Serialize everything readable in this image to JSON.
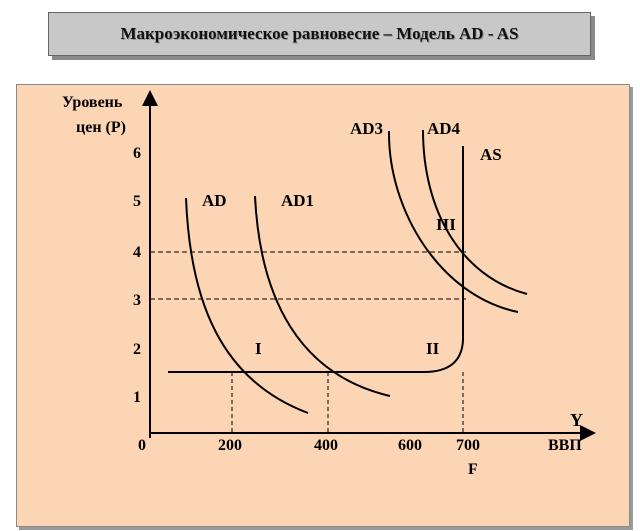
{
  "title": "Макроэкономическое равновесие – Модель AD - AS",
  "chart_data": {
    "type": "line",
    "y_axis_label_line1": "Уровень",
    "y_axis_label_line2": "цен (Р)",
    "x_axis_label_top": "Y",
    "x_axis_label_bottom": "ВВП",
    "origin_label": "0",
    "full_employment_label": "F",
    "y_ticks": [
      "1",
      "2",
      "3",
      "4",
      "5",
      "6"
    ],
    "x_ticks": [
      "200",
      "400",
      "600",
      "700"
    ],
    "series": [
      {
        "name": "AD"
      },
      {
        "name": "AD1"
      },
      {
        "name": "AD3"
      },
      {
        "name": "AD4"
      },
      {
        "name": "AS"
      }
    ],
    "segment_labels": [
      "I",
      "II",
      "III"
    ],
    "horizontal_as_price": 1.5,
    "dashed_price_levels": [
      3,
      4
    ],
    "dashed_gdp_levels": [
      200,
      400,
      700
    ]
  }
}
